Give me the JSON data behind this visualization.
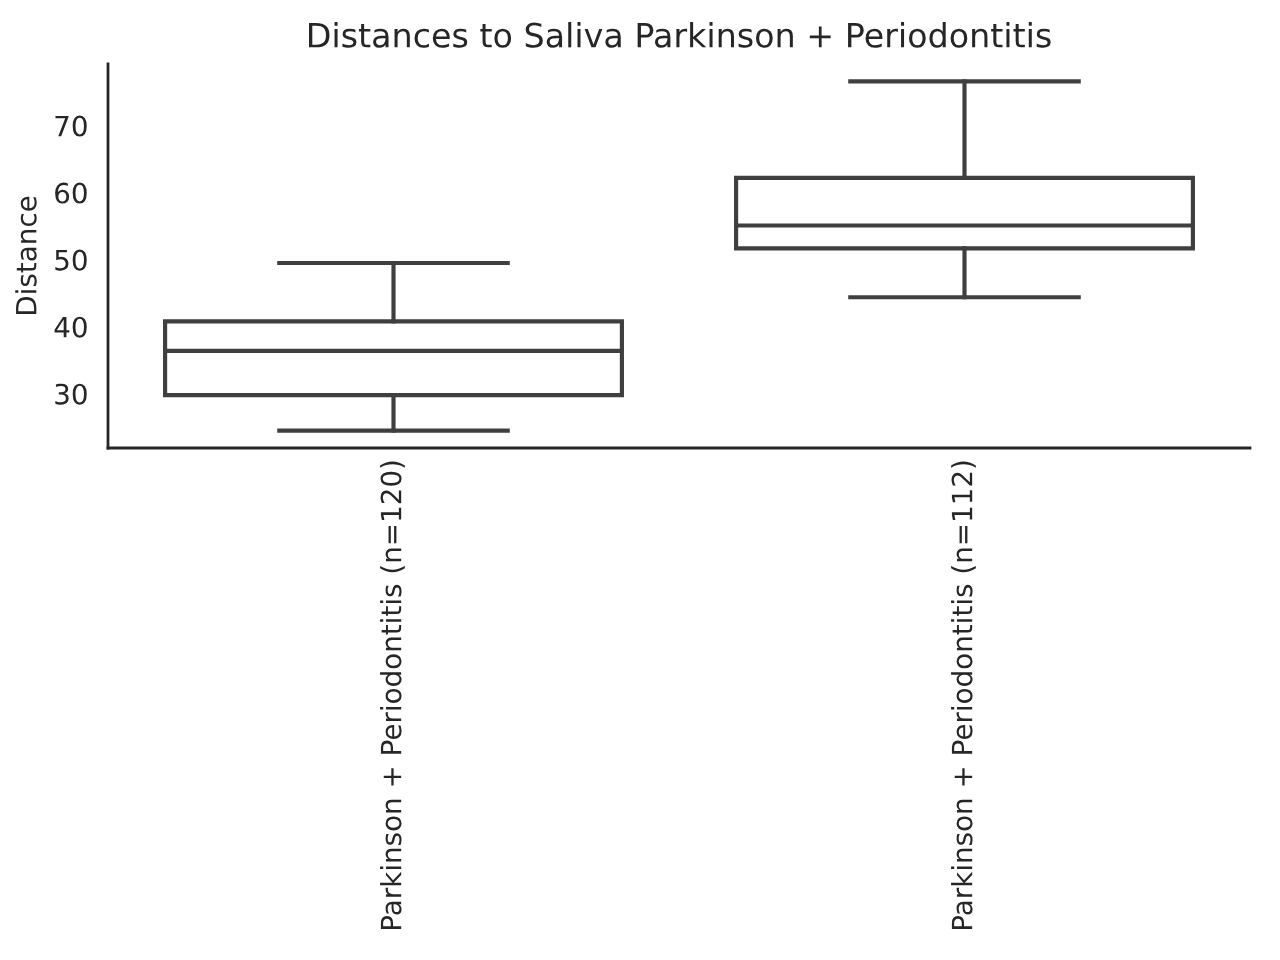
{
  "chart_data": {
    "type": "box",
    "title": "Distances to Saliva Parkinson + Periodontitis",
    "ylabel": "Distance",
    "categories": [
      "Parkinson + Periodontitis (n=120)",
      "Parkinson + Periodontitis (n=112)"
    ],
    "boxes": [
      {
        "low": 24.5,
        "q1": 29.8,
        "median": 36.4,
        "q3": 40.8,
        "high": 49.5
      },
      {
        "low": 44.4,
        "q1": 51.7,
        "median": 55.1,
        "q3": 62.2,
        "high": 76.6
      }
    ],
    "color": "#3f3f3f",
    "ylim": [
      21.9,
      79.2
    ],
    "yticks": [
      30,
      40,
      50,
      60,
      70
    ],
    "grid": false
  }
}
